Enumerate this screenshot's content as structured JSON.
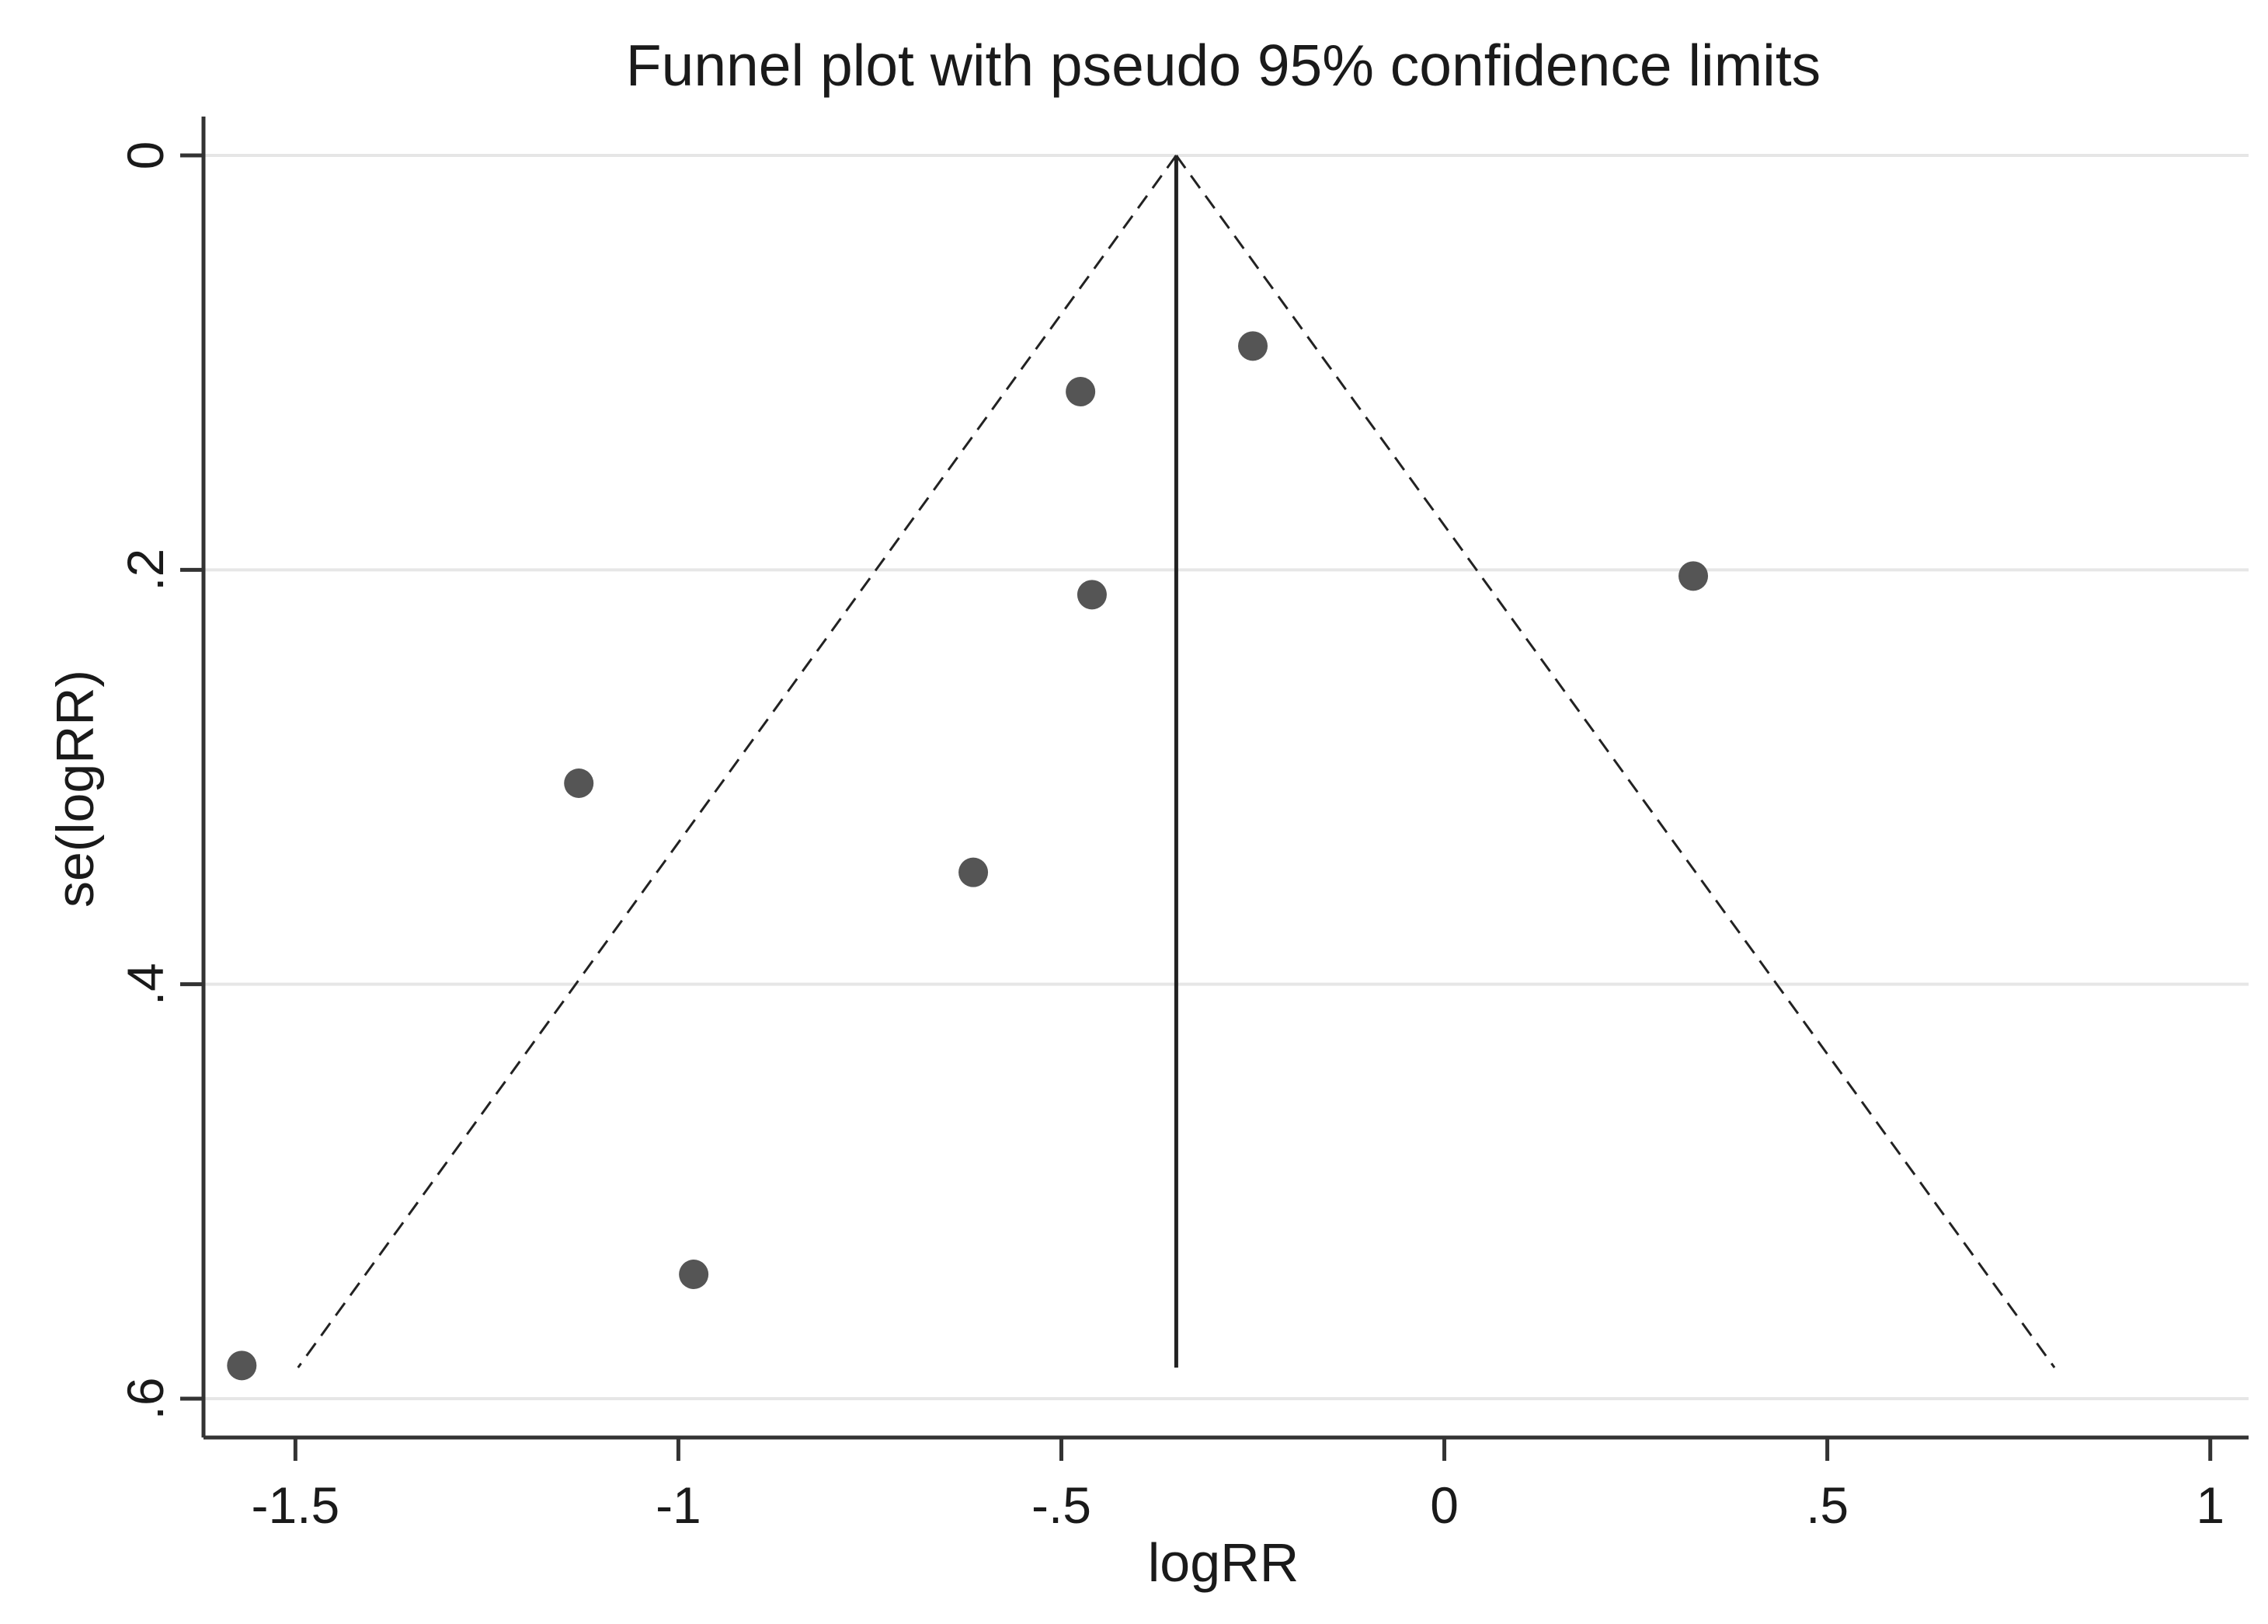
{
  "chart_data": {
    "type": "scatter",
    "title": "Funnel plot with pseudo 95% confidence limits",
    "xlabel": "logRR",
    "ylabel": "se(logRR)",
    "xlim": [
      -1.62,
      1.05
    ],
    "ylim": [
      0,
      0.6
    ],
    "y_reversed": true,
    "grid": true,
    "x_ticks": [
      {
        "value": -1.5,
        "label": "-1.5"
      },
      {
        "value": -1,
        "label": "-1"
      },
      {
        "value": -0.5,
        "label": "-.5"
      },
      {
        "value": 0,
        "label": "0"
      },
      {
        "value": 0.5,
        "label": ".5"
      },
      {
        "value": 1,
        "label": "1"
      }
    ],
    "y_ticks": [
      {
        "value": 0,
        "label": "0"
      },
      {
        "value": 0.2,
        "label": ".2"
      },
      {
        "value": 0.4,
        "label": ".4"
      },
      {
        "value": 0.6,
        "label": ".6"
      }
    ],
    "pooled_estimate": -0.35,
    "se_max": 0.585,
    "points": [
      {
        "x": -0.25,
        "y": 0.092
      },
      {
        "x": -0.475,
        "y": 0.114
      },
      {
        "x": -0.46,
        "y": 0.212
      },
      {
        "x": 0.325,
        "y": 0.203
      },
      {
        "x": -1.13,
        "y": 0.303
      },
      {
        "x": -0.615,
        "y": 0.346
      },
      {
        "x": -0.98,
        "y": 0.54
      },
      {
        "x": -1.57,
        "y": 0.584
      }
    ],
    "colors": {
      "points": "#555555",
      "axis": "#333333",
      "grid": "#e6e6e6",
      "lines": "#222222"
    }
  }
}
